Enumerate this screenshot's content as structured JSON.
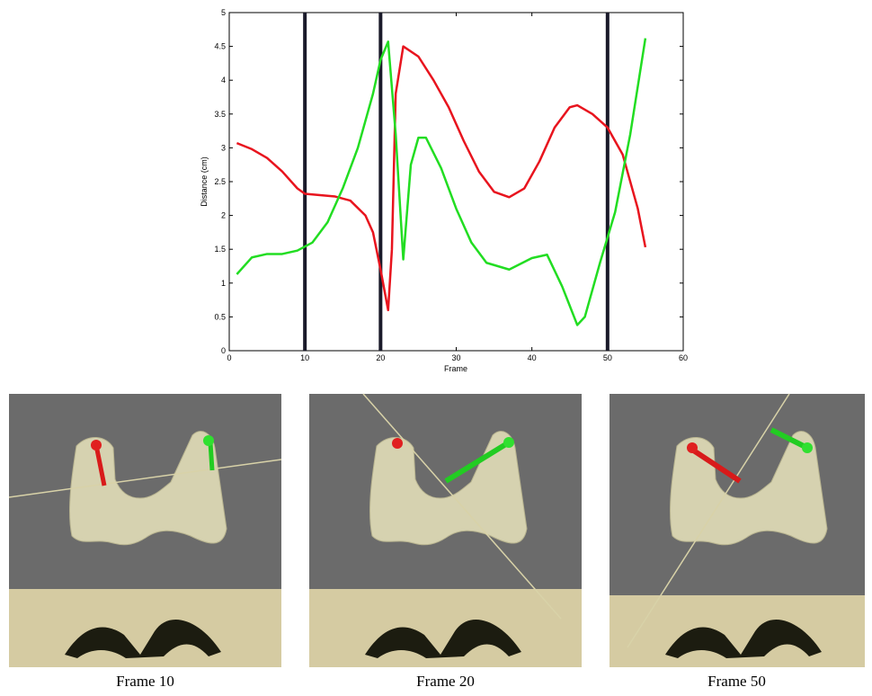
{
  "chart_data": {
    "type": "line",
    "xlabel": "Frame",
    "ylabel": "Distance (cm)",
    "xlim": [
      0,
      60
    ],
    "xticks": [
      0,
      10,
      20,
      30,
      40,
      50,
      60
    ],
    "ylim": [
      0,
      5
    ],
    "yticks": [
      0,
      0.5,
      1,
      1.5,
      2,
      2.5,
      3,
      3.5,
      4,
      4.5,
      5
    ],
    "vlines": [
      10,
      20,
      50
    ],
    "vline_color": "#1a1a2a",
    "series": [
      {
        "color": "#e8141e",
        "x": [
          1,
          3,
          5,
          7,
          9,
          10,
          12,
          14,
          16,
          18,
          19,
          20,
          21,
          21.5,
          22,
          23,
          25,
          27,
          29,
          31,
          33,
          35,
          37,
          39,
          41,
          43,
          45,
          46,
          48,
          50,
          52,
          54,
          55
        ],
        "values": [
          3.07,
          2.98,
          2.85,
          2.65,
          2.4,
          2.32,
          2.3,
          2.28,
          2.22,
          2.0,
          1.75,
          1.2,
          0.6,
          1.5,
          3.8,
          4.5,
          4.35,
          4.0,
          3.6,
          3.1,
          2.65,
          2.35,
          2.27,
          2.4,
          2.8,
          3.3,
          3.6,
          3.63,
          3.5,
          3.3,
          2.9,
          2.1,
          1.53
        ]
      },
      {
        "color": "#22dd22",
        "x": [
          1,
          3,
          5,
          7,
          9,
          11,
          13,
          15,
          17,
          19,
          20,
          21,
          22,
          23,
          24,
          25,
          26,
          28,
          30,
          32,
          34,
          37,
          40,
          42,
          44,
          46,
          47,
          49,
          51,
          53,
          55
        ],
        "values": [
          1.13,
          1.38,
          1.43,
          1.43,
          1.48,
          1.6,
          1.9,
          2.4,
          3.0,
          3.8,
          4.3,
          4.57,
          3.2,
          1.35,
          2.75,
          3.15,
          3.15,
          2.7,
          2.1,
          1.6,
          1.3,
          1.2,
          1.37,
          1.42,
          0.95,
          0.38,
          0.5,
          1.3,
          2.05,
          3.2,
          4.62
        ]
      }
    ]
  },
  "panels": [
    {
      "caption": "Frame 10"
    },
    {
      "caption": "Frame 20"
    },
    {
      "caption": "Frame 50"
    }
  ]
}
